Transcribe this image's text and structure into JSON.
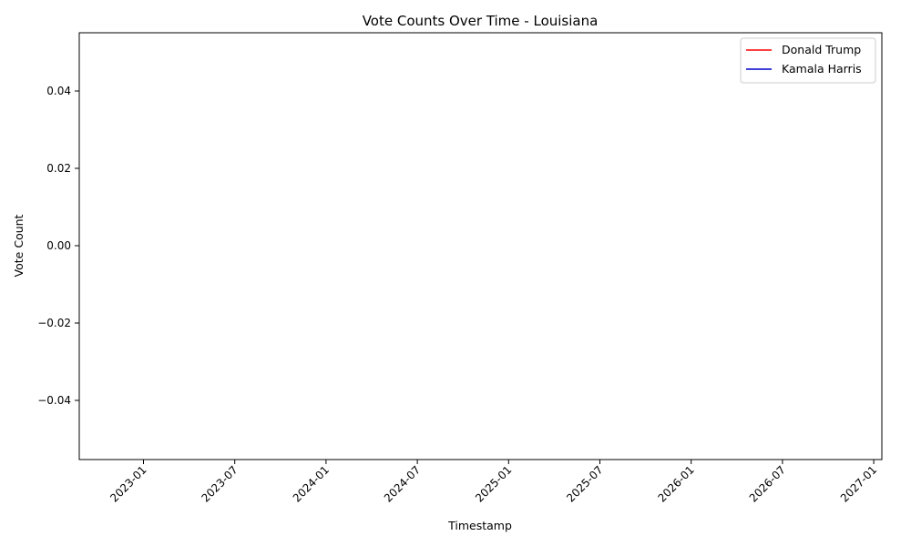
{
  "chart_data": {
    "type": "line",
    "title": "Vote Counts Over Time - Louisiana",
    "xlabel": "Timestamp",
    "ylabel": "Vote Count",
    "x_ticks": [
      "2023-01",
      "2023-07",
      "2024-01",
      "2024-07",
      "2025-01",
      "2025-07",
      "2026-01",
      "2026-07",
      "2027-01"
    ],
    "y_ticks": [
      "0.04",
      "0.02",
      "0.00",
      "−0.02",
      "−0.04"
    ],
    "ylim": [
      -0.055,
      0.055
    ],
    "grid": false,
    "legend_position": "top-right",
    "series": [
      {
        "name": "Donald Trump",
        "color": "#ff0000",
        "x": [],
        "y": []
      },
      {
        "name": "Kamala Harris",
        "color": "#0000cc",
        "x": [],
        "y": []
      }
    ]
  }
}
